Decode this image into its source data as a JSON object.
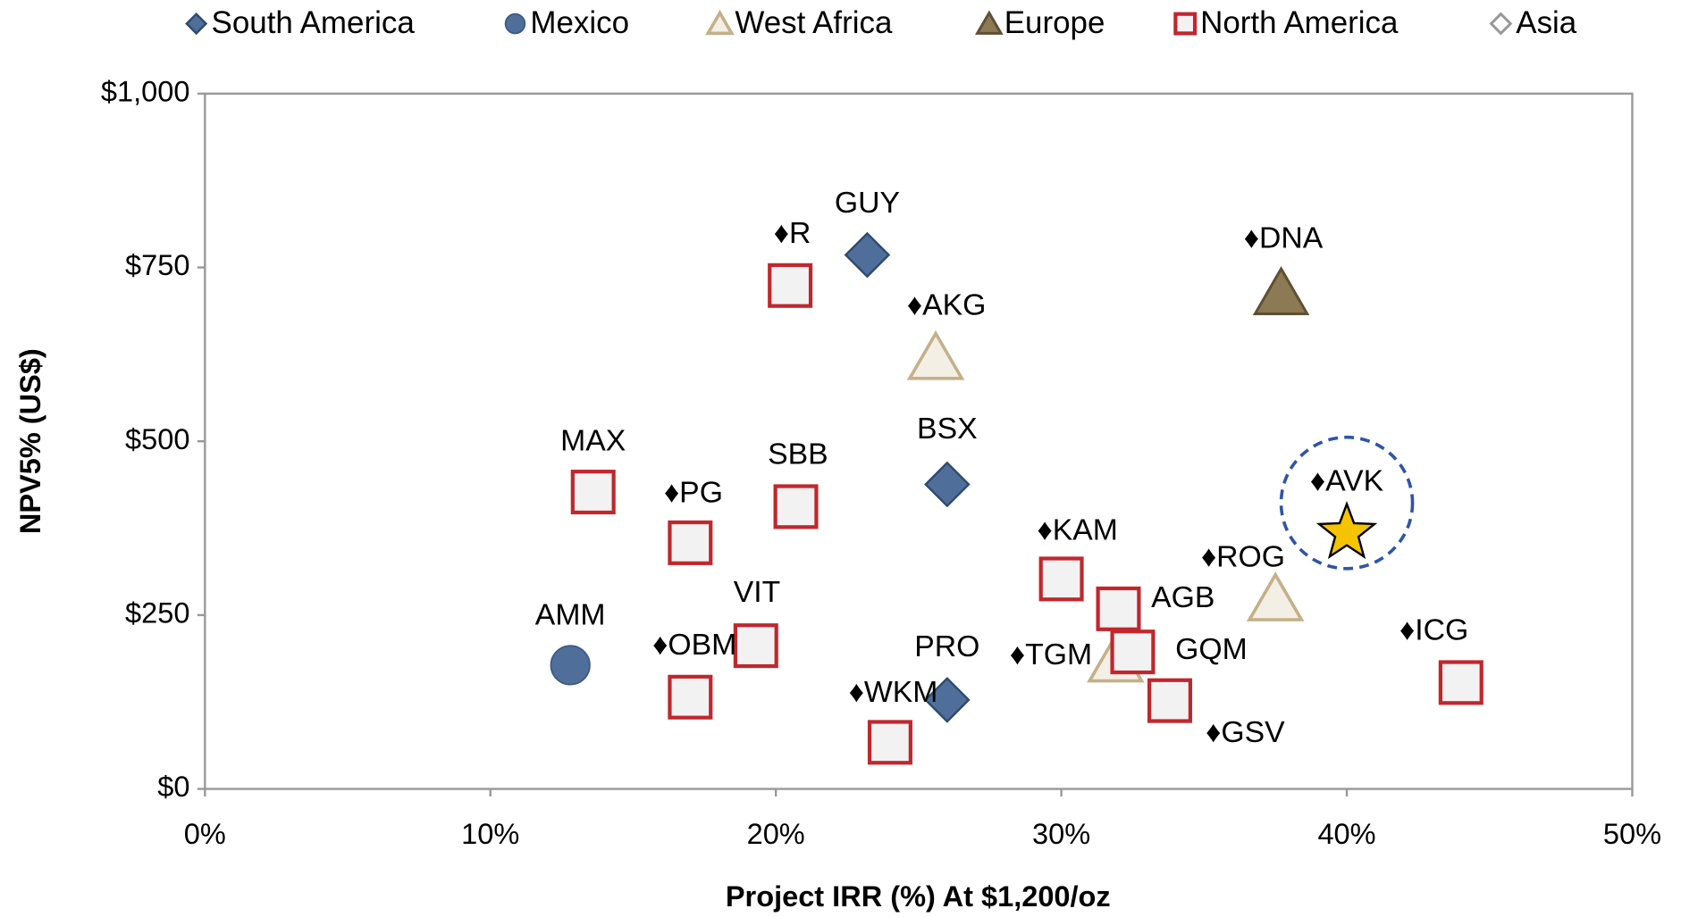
{
  "chart_data": {
    "type": "scatter",
    "xlabel": "Project IRR (%) At $1,200/oz",
    "ylabel": "NPV5% (US$)",
    "xlim": [
      0,
      50
    ],
    "ylim": [
      0,
      1000
    ],
    "xticks": [
      {
        "value": 0,
        "label": "0%"
      },
      {
        "value": 10,
        "label": "10%"
      },
      {
        "value": 20,
        "label": "20%"
      },
      {
        "value": 30,
        "label": "30%"
      },
      {
        "value": 40,
        "label": "40%"
      },
      {
        "value": 50,
        "label": "50%"
      }
    ],
    "yticks": [
      {
        "value": 0,
        "label": "$0"
      },
      {
        "value": 250,
        "label": "$250"
      },
      {
        "value": 500,
        "label": "$500"
      },
      {
        "value": 750,
        "label": "$750"
      },
      {
        "value": 1000,
        "label": "$1,000"
      }
    ],
    "grid": false,
    "legend": "top",
    "series": [
      {
        "name": "South America",
        "marker": "diamond",
        "color": "#4f6f9a",
        "x": [
          23.2,
          26.0,
          26.0
        ],
        "values": [
          768,
          438,
          128
        ],
        "labels": [
          "GUY",
          "BSX",
          "PRO"
        ]
      },
      {
        "name": "Mexico",
        "marker": "circle",
        "color": "#4f6f9a",
        "x": [
          12.8
        ],
        "values": [
          178
        ],
        "labels": [
          "AMM"
        ]
      },
      {
        "name": "West Africa",
        "marker": "open-triangle",
        "color": "#c4b08a",
        "x": [
          25.6,
          37.5,
          31.9
        ],
        "values": [
          621,
          274,
          186
        ],
        "labels": [
          "♦AKG",
          "♦ROG",
          "♦TGM"
        ]
      },
      {
        "name": "Europe",
        "marker": "triangle",
        "color": "#8c7a55",
        "x": [
          37.7
        ],
        "values": [
          714
        ],
        "labels": [
          "♦DNA"
        ]
      },
      {
        "name": "North America",
        "marker": "square",
        "color": "#c0272d",
        "x": [
          20.5,
          13.6,
          17.0,
          20.7,
          19.3,
          17.0,
          24.0,
          30.0,
          32.0,
          32.5,
          33.8,
          44.0
        ],
        "values": [
          724,
          427,
          354,
          406,
          206,
          132,
          67,
          302,
          259,
          197,
          127,
          153
        ],
        "labels": [
          "♦R",
          "MAX",
          "♦PG",
          "SBB",
          "VIT",
          "♦OBM",
          "♦WKM",
          "♦KAM",
          "AGB",
          "GQM",
          "♦GSV",
          "♦ICG"
        ]
      },
      {
        "name": "Asia",
        "marker": "open-diamond",
        "color": "#999999",
        "x": [],
        "values": [],
        "labels": []
      },
      {
        "marker": "star",
        "color": "#f5c400",
        "x": [
          40.0
        ],
        "values": [
          368
        ],
        "labels": [
          "♦AVK"
        ]
      }
    ]
  }
}
